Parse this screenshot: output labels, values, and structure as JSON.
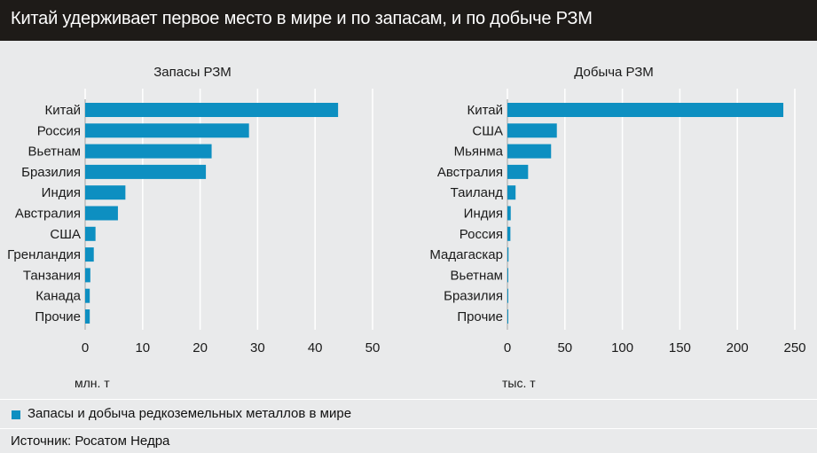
{
  "header": {
    "title": "Китай удерживает первое место в мире и по запасам, и по добыче РЗМ"
  },
  "chart_data": [
    {
      "type": "bar",
      "orientation": "horizontal",
      "title": "Запасы РЗМ",
      "xlabel": "млн. т",
      "categories": [
        "Китай",
        "Россия",
        "Вьетнам",
        "Бразилия",
        "Индия",
        "Австралия",
        "США",
        "Гренландия",
        "Танзания",
        "Канада",
        "Прочие"
      ],
      "values": [
        44,
        28.5,
        22,
        21,
        7,
        5.7,
        1.8,
        1.5,
        0.9,
        0.8,
        0.8
      ],
      "xlim": [
        0,
        50
      ],
      "ticks": [
        0,
        10,
        20,
        30,
        40,
        50
      ],
      "grid": true
    },
    {
      "type": "bar",
      "orientation": "horizontal",
      "title": "Добыча РЗМ",
      "xlabel": "тыс. т",
      "categories": [
        "Китай",
        "США",
        "Мьянма",
        "Австралия",
        "Таиланд",
        "Индия",
        "Россия",
        "Мадагаскар",
        "Вьетнам",
        "Бразилия",
        "Прочие"
      ],
      "values": [
        240,
        43,
        38,
        18,
        7.1,
        2.9,
        2.6,
        0.96,
        0.6,
        0.08,
        0.3
      ],
      "xlim": [
        0,
        250
      ],
      "ticks": [
        0,
        50,
        100,
        150,
        200,
        250
      ],
      "grid": true
    }
  ],
  "legend": {
    "label": "Запасы и добыча редкоземельных металлов в мире"
  },
  "source": {
    "text": "Источник: Росатом Недра"
  },
  "colors": {
    "bar": "#0d8fc1",
    "header_bg": "#1e1b18",
    "panel_bg": "#e9eaeb"
  }
}
